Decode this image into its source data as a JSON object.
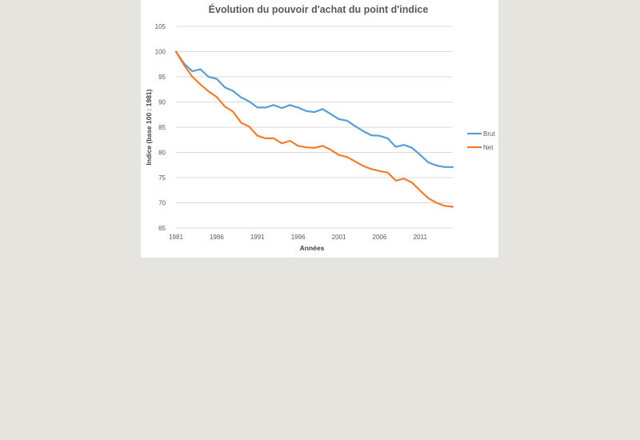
{
  "chart_data": {
    "type": "line",
    "title": "Évolution du pouvoir d'achat du point d'indice",
    "xlabel": "Années",
    "ylabel": "Indice (base 100 : 1981)",
    "ylim": [
      65,
      105
    ],
    "yticks": [
      65,
      70,
      75,
      80,
      85,
      90,
      95,
      100,
      105
    ],
    "xticks": [
      1981,
      1986,
      1991,
      1996,
      2001,
      2006,
      2011
    ],
    "xlim": [
      1981,
      2015
    ],
    "grid": true,
    "legend_position": "right",
    "x": [
      1981,
      1982,
      1983,
      1984,
      1985,
      1986,
      1987,
      1988,
      1989,
      1990,
      1991,
      1992,
      1993,
      1994,
      1995,
      1996,
      1997,
      1998,
      1999,
      2000,
      2001,
      2002,
      2003,
      2004,
      2005,
      2006,
      2007,
      2008,
      2009,
      2010,
      2011,
      2012,
      2013,
      2014,
      2015
    ],
    "series": [
      {
        "name": "Brut",
        "color": "#5b9bd5",
        "values": [
          100,
          97.6,
          96.1,
          96.5,
          95,
          94.6,
          92.9,
          92.2,
          90.9,
          90.1,
          88.9,
          88.9,
          89.4,
          88.8,
          89.4,
          88.9,
          88.2,
          88,
          88.6,
          87.6,
          86.6,
          86.3,
          85.2,
          84.2,
          83.4,
          83.3,
          82.8,
          81.1,
          81.5,
          80.9,
          79.5,
          78,
          77.4,
          77.1,
          77.1
        ]
      },
      {
        "name": "Net",
        "color": "#ed7d31",
        "values": [
          100,
          97.3,
          95,
          93.5,
          92.1,
          91,
          89.1,
          88.1,
          85.9,
          85.1,
          83.3,
          82.8,
          82.8,
          81.8,
          82.3,
          81.3,
          81,
          80.9,
          81.3,
          80.5,
          79.5,
          79.1,
          78.2,
          77.3,
          76.7,
          76.3,
          76,
          74.4,
          74.8,
          74,
          72.4,
          70.9,
          70,
          69.4,
          69.2
        ]
      }
    ]
  }
}
